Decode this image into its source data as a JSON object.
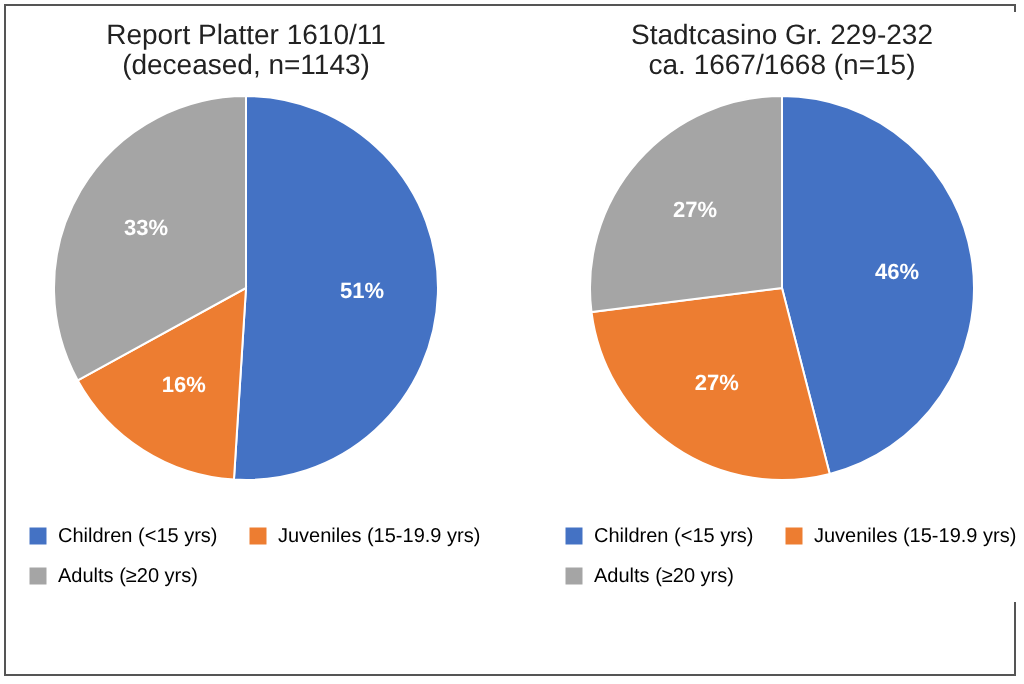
{
  "chart_data": [
    {
      "type": "pie",
      "title": "Report Platter 1610/11",
      "subtitle": "(deceased, n=1143)",
      "categories": [
        "Children (<15 yrs)",
        "Juveniles (15-19.9 yrs)",
        "Adults (≥20 yrs)"
      ],
      "values": [
        51,
        16,
        33
      ],
      "value_labels": [
        "51%",
        "16%",
        "33%"
      ],
      "colors": [
        "#4472c4",
        "#ed7d31",
        "#a5a5a5"
      ],
      "legend": "bottom"
    },
    {
      "type": "pie",
      "title": "Stadtcasino Gr. 229-232",
      "subtitle": "ca. 1667/1668 (n=15)",
      "categories": [
        "Children (<15 yrs)",
        "Juveniles (15-19.9 yrs)",
        "Adults (≥20 yrs)"
      ],
      "values": [
        46,
        27,
        27
      ],
      "value_labels": [
        "46%",
        "27%",
        "27%"
      ],
      "colors": [
        "#4472c4",
        "#ed7d31",
        "#a5a5a5"
      ],
      "legend": "bottom"
    }
  ]
}
